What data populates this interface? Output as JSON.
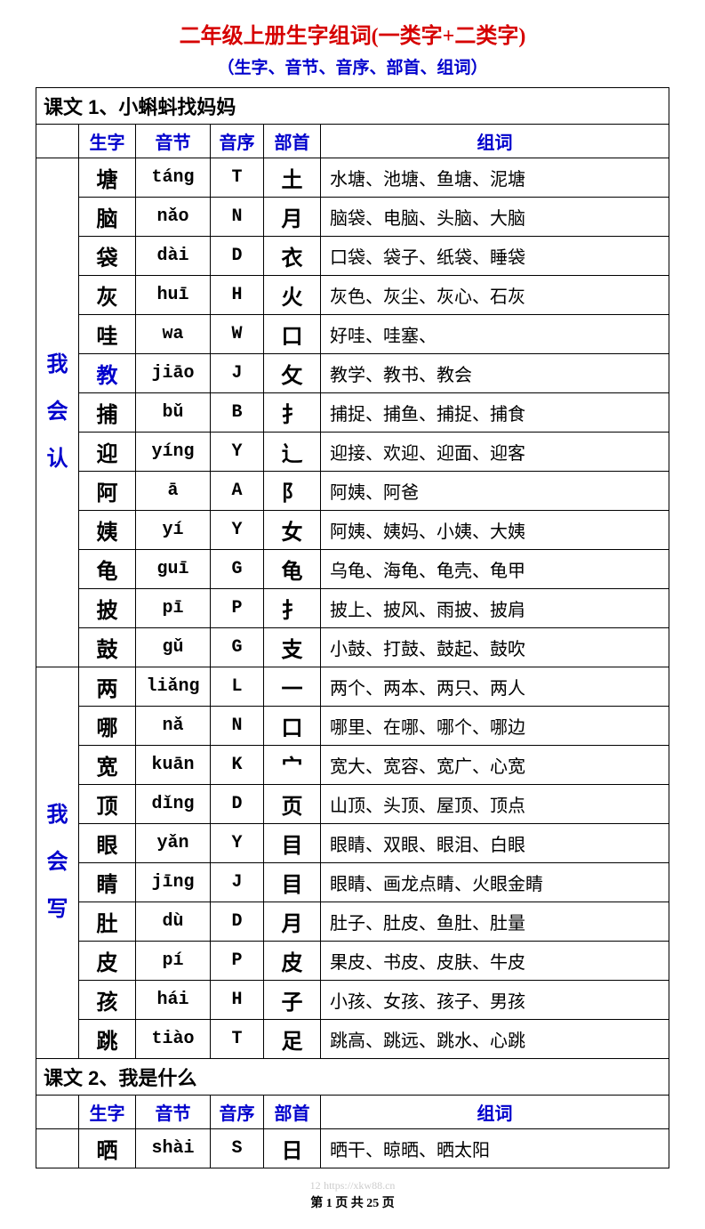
{
  "title": "二年级上册生字组词(一类字+二类字)",
  "subtitle": "（生字、音节、音序、部首、组词）",
  "headers": {
    "char": "生字",
    "pinyin": "音节",
    "initial": "音序",
    "radical": "部首",
    "words": "组词"
  },
  "sections": [
    {
      "lesson": "课文 1、小蝌蚪找妈妈",
      "groups": [
        {
          "category": "我会认",
          "rows": [
            {
              "char": "塘",
              "pinyin": "táng",
              "initial": "T",
              "radical": "土",
              "words": "水塘、池塘、鱼塘、泥塘",
              "blue": false
            },
            {
              "char": "脑",
              "pinyin": "nǎo",
              "initial": "N",
              "radical": "月",
              "words": "脑袋、电脑、头脑、大脑",
              "blue": false
            },
            {
              "char": "袋",
              "pinyin": "dài",
              "initial": "D",
              "radical": "衣",
              "words": "口袋、袋子、纸袋、睡袋",
              "blue": false
            },
            {
              "char": "灰",
              "pinyin": "huī",
              "initial": "H",
              "radical": "火",
              "words": "灰色、灰尘、灰心、石灰",
              "blue": false
            },
            {
              "char": "哇",
              "pinyin": "wa",
              "initial": "W",
              "radical": "口",
              "words": "好哇、哇塞、",
              "blue": false
            },
            {
              "char": "教",
              "pinyin": "jiāo",
              "initial": "J",
              "radical": "攵",
              "words": "教学、教书、教会",
              "blue": true
            },
            {
              "char": "捕",
              "pinyin": "bǔ",
              "initial": "B",
              "radical": "扌",
              "words": "捕捉、捕鱼、捕捉、捕食",
              "blue": false
            },
            {
              "char": "迎",
              "pinyin": "yíng",
              "initial": "Y",
              "radical": "辶",
              "words": "迎接、欢迎、迎面、迎客",
              "blue": false
            },
            {
              "char": "阿",
              "pinyin": "ā",
              "initial": "A",
              "radical": "阝",
              "words": "阿姨、阿爸",
              "blue": false
            },
            {
              "char": "姨",
              "pinyin": "yí",
              "initial": "Y",
              "radical": "女",
              "words": "阿姨、姨妈、小姨、大姨",
              "blue": false
            },
            {
              "char": "龟",
              "pinyin": "guī",
              "initial": "G",
              "radical": "龟",
              "words": "乌龟、海龟、龟壳、龟甲",
              "blue": false
            },
            {
              "char": "披",
              "pinyin": "pī",
              "initial": "P",
              "radical": "扌",
              "words": "披上、披风、雨披、披肩",
              "blue": false
            },
            {
              "char": "鼓",
              "pinyin": "gǔ",
              "initial": "G",
              "radical": "支",
              "words": "小鼓、打鼓、鼓起、鼓吹",
              "blue": false
            }
          ]
        },
        {
          "category": "我会写",
          "rows": [
            {
              "char": "两",
              "pinyin": "liǎng",
              "initial": "L",
              "radical": "一",
              "words": "两个、两本、两只、两人",
              "blue": false
            },
            {
              "char": "哪",
              "pinyin": "nǎ",
              "initial": "N",
              "radical": "口",
              "words": "哪里、在哪、哪个、哪边",
              "blue": false
            },
            {
              "char": "宽",
              "pinyin": "kuān",
              "initial": "K",
              "radical": "宀",
              "words": "宽大、宽容、宽广、心宽",
              "blue": false
            },
            {
              "char": "顶",
              "pinyin": "dǐng",
              "initial": "D",
              "radical": "页",
              "words": "山顶、头顶、屋顶、顶点",
              "blue": false
            },
            {
              "char": "眼",
              "pinyin": "yǎn",
              "initial": "Y",
              "radical": "目",
              "words": "眼睛、双眼、眼泪、白眼",
              "blue": false
            },
            {
              "char": "睛",
              "pinyin": "jīng",
              "initial": "J",
              "radical": "目",
              "words": "眼睛、画龙点睛、火眼金睛",
              "blue": false
            },
            {
              "char": "肚",
              "pinyin": "dù",
              "initial": "D",
              "radical": "月",
              "words": "肚子、肚皮、鱼肚、肚量",
              "blue": false
            },
            {
              "char": "皮",
              "pinyin": "pí",
              "initial": "P",
              "radical": "皮",
              "words": "果皮、书皮、皮肤、牛皮",
              "blue": false
            },
            {
              "char": "孩",
              "pinyin": "hái",
              "initial": "H",
              "radical": "子",
              "words": "小孩、女孩、孩子、男孩",
              "blue": false
            },
            {
              "char": "跳",
              "pinyin": "tiào",
              "initial": "T",
              "radical": "足",
              "words": "跳高、跳远、跳水、心跳",
              "blue": false
            }
          ]
        }
      ]
    },
    {
      "lesson": "课文 2、我是什么",
      "groups": [
        {
          "category": "",
          "rows": [
            {
              "char": "晒",
              "pinyin": "shài",
              "initial": "S",
              "radical": "日",
              "words": "晒干、晾晒、晒太阳",
              "blue": false
            }
          ]
        }
      ]
    }
  ],
  "footer": {
    "watermark": "https://xkw88.cn",
    "pageprefix": "第 ",
    "pagenum": "1",
    "pagemid": " 页 共 ",
    "pagetotal": "25",
    "pagesuffix": " 页",
    "leadnum": "12"
  }
}
